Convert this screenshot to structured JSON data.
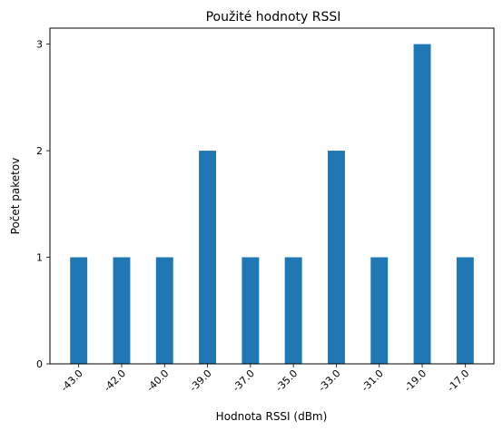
{
  "chart_data": {
    "type": "bar",
    "title": "Použité hodnoty RSSI",
    "xlabel": "Hodnota RSSI (dBm)",
    "ylabel": "Počet paketov",
    "categories": [
      "-43.0",
      "-42.0",
      "-40.0",
      "-39.0",
      "-37.0",
      "-35.0",
      "-33.0",
      "-31.0",
      "-19.0",
      "-17.0"
    ],
    "values": [
      1,
      1,
      1,
      2,
      1,
      1,
      2,
      1,
      3,
      1
    ],
    "ylim": [
      0,
      3.15
    ],
    "yticks": [
      "0",
      "1",
      "2",
      "3"
    ],
    "bar_color": "#1f77b4",
    "grid": false,
    "legend": "none"
  }
}
